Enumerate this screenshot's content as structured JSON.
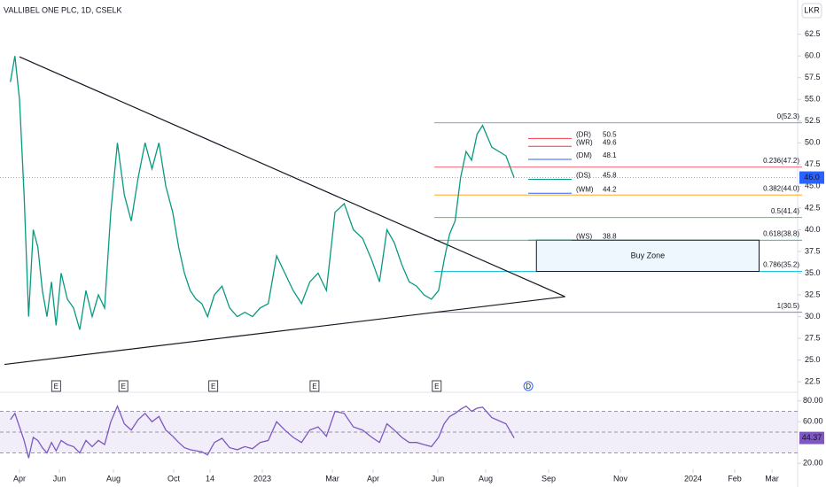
{
  "header": {
    "symbol": "VALLIBEL ONE PLC, 1D, CSELK",
    "currency": "LKR"
  },
  "chart_data": [
    {
      "type": "line",
      "x": [
        "2022-03-18",
        "2022-03-25",
        "2022-04-01",
        "2022-04-08",
        "2022-04-15",
        "2022-04-22",
        "2022-04-29",
        "2022-05-06",
        "2022-05-13",
        "2022-05-20",
        "2022-05-27",
        "2022-06-03",
        "2022-06-10",
        "2022-06-17",
        "2022-06-24",
        "2022-07-01",
        "2022-07-08",
        "2022-07-15",
        "2022-07-22",
        "2022-07-29",
        "2022-08-05",
        "2022-08-12",
        "2022-08-19",
        "2022-08-26",
        "2022-09-02",
        "2022-09-09",
        "2022-09-16",
        "2022-09-23",
        "2022-09-30",
        "2022-10-07",
        "2022-10-14",
        "2022-10-21",
        "2022-10-28",
        "2022-11-04",
        "2022-11-11",
        "2022-11-18",
        "2022-11-25",
        "2022-12-02",
        "2022-12-09",
        "2022-12-16",
        "2022-12-23",
        "2022-12-30",
        "2023-01-06",
        "2023-01-13",
        "2023-01-20",
        "2023-01-27",
        "2023-02-03",
        "2023-02-10",
        "2023-02-17",
        "2023-02-24",
        "2023-03-03",
        "2023-03-10",
        "2023-03-17",
        "2023-03-24",
        "2023-03-31",
        "2023-04-07",
        "2023-04-14",
        "2023-04-21",
        "2023-04-28",
        "2023-05-05",
        "2023-05-12",
        "2023-05-19",
        "2023-05-26",
        "2023-06-02",
        "2023-06-09",
        "2023-06-16",
        "2023-06-23",
        "2023-06-30",
        "2023-07-07",
        "2023-07-14",
        "2023-07-21",
        "2023-07-28",
        "2023-08-04",
        "2023-08-11",
        "2023-08-15"
      ],
      "series": [
        {
          "color": "#089981",
          "values": [
            57,
            60,
            55,
            44,
            30,
            40,
            38,
            33,
            30,
            34,
            29,
            35,
            32,
            31,
            28.5,
            33,
            30,
            32.5,
            31,
            42,
            50,
            44,
            41,
            46,
            50,
            47,
            50,
            45,
            42,
            38,
            35,
            33,
            32,
            31.5,
            30,
            32.5,
            33.5,
            31,
            30,
            30.5,
            30,
            31,
            31.5,
            37,
            35,
            33,
            31.5,
            34,
            35,
            33,
            42,
            43,
            40,
            39,
            36.5,
            34,
            40,
            38.5,
            36,
            34,
            33.5,
            32.5,
            32,
            33,
            36.5,
            39.5,
            41,
            46,
            49,
            48,
            51,
            52,
            49.5,
            48.5,
            46
          ]
        }
      ],
      "ylim": [
        21.6,
        64.4
      ],
      "yticks": [
        {
          "value": 22.5,
          "label": "22.5"
        },
        {
          "value": 25,
          "label": "25.0"
        },
        {
          "value": 27.5,
          "label": "27.5"
        },
        {
          "value": 30,
          "label": "30.0"
        },
        {
          "value": 32.5,
          "label": "32.5"
        },
        {
          "value": 35,
          "label": "35.0"
        },
        {
          "value": 37.5,
          "label": "37.5"
        },
        {
          "value": 40,
          "label": "40.0"
        },
        {
          "value": 42.5,
          "label": "42.5"
        },
        {
          "value": 45,
          "label": "45.0"
        },
        {
          "value": 47.5,
          "label": "47.5"
        },
        {
          "value": 50,
          "label": "50.0"
        },
        {
          "value": 52.5,
          "label": "52.5"
        },
        {
          "value": 55,
          "label": "55.0"
        },
        {
          "value": 57.5,
          "label": "57.5"
        },
        {
          "value": 60,
          "label": "60.0"
        },
        {
          "value": 62.5,
          "label": "62.5"
        }
      ],
      "xticks": [
        {
          "value": "2022-04-01",
          "label": "Apr"
        },
        {
          "value": "2022-06-01",
          "label": "Jun"
        },
        {
          "value": "2022-08-01",
          "label": "Aug"
        },
        {
          "value": "2022-10-01",
          "label": "Oct"
        },
        {
          "value": "2022-11-14",
          "label": "14"
        },
        {
          "value": "2023-01-01",
          "label": "2023"
        },
        {
          "value": "2023-03-01",
          "label": "Mar"
        },
        {
          "value": "2023-04-01",
          "label": "Apr"
        },
        {
          "value": "2023-06-01",
          "label": "Jun"
        },
        {
          "value": "2023-08-01",
          "label": "Aug"
        },
        {
          "value": "2023-09-01",
          "label": "Sep"
        },
        {
          "value": "2023-11-01",
          "label": "Nov"
        },
        {
          "value": "2024-01-01",
          "label": "2024"
        },
        {
          "value": "2024-02-01",
          "label": "Feb"
        },
        {
          "value": "2024-03-01",
          "label": "Mar"
        }
      ],
      "current_price": {
        "value": 46.0,
        "label": "46.0",
        "color": "#2962ff"
      },
      "trendlines": [
        {
          "x": [
            "2022-04-01",
            "2023-09-15"
          ],
          "values": [
            59.9,
            32.3
          ]
        },
        {
          "x": [
            "2022-03-09",
            "2023-09-15"
          ],
          "values": [
            24.5,
            32.3
          ]
        }
      ],
      "fib_levels": [
        {
          "label": "0(52.3)",
          "value": 52.3,
          "color": "#787b86"
        },
        {
          "label": "0.236(47.2)",
          "value": 47.2,
          "color": "#f23645"
        },
        {
          "label": "0.382(44.0)",
          "value": 44.0,
          "color": "#ff9800"
        },
        {
          "label": "0.5(41.4)",
          "value": 41.4,
          "color": "#4caf50"
        },
        {
          "label": "0.618(38.8)",
          "value": 38.8,
          "color": "#089981"
        },
        {
          "label": "0.786(35.2)",
          "value": 35.2,
          "color": "#00bcd4"
        },
        {
          "label": "1(30.5)",
          "value": 30.5,
          "color": "#787b86"
        }
      ],
      "pivots": [
        {
          "name": "(DR)",
          "value": 50.5,
          "color": "#f23645"
        },
        {
          "name": "(WR)",
          "value": 49.6,
          "color": "#f23645"
        },
        {
          "name": "(DM)",
          "value": 48.1,
          "color": "#2962ff"
        },
        {
          "name": "(DS)",
          "value": 45.8,
          "color": "#089981"
        },
        {
          "name": "(WM)",
          "value": 44.2,
          "color": "#2962ff"
        },
        {
          "name": "(WS)",
          "value": 38.8,
          "color": "#089981"
        }
      ],
      "zone": {
        "label": "Buy Zone",
        "x": [
          "2023-08-26",
          "2024-02-20"
        ],
        "values": [
          38.8,
          35.2
        ]
      },
      "events": [
        {
          "label": "E",
          "x": "2022-05-27"
        },
        {
          "label": "E",
          "x": "2022-08-11"
        },
        {
          "label": "E",
          "x": "2022-11-17"
        },
        {
          "label": "E",
          "x": "2023-02-14"
        },
        {
          "label": "E",
          "x": "2023-05-31"
        },
        {
          "label": "D",
          "x": "2023-08-22"
        }
      ]
    },
    {
      "type": "line",
      "x": [
        "2022-03-18",
        "2022-03-25",
        "2022-04-01",
        "2022-04-08",
        "2022-04-15",
        "2022-04-22",
        "2022-04-29",
        "2022-05-06",
        "2022-05-13",
        "2022-05-20",
        "2022-05-27",
        "2022-06-03",
        "2022-06-10",
        "2022-06-17",
        "2022-06-24",
        "2022-07-01",
        "2022-07-08",
        "2022-07-15",
        "2022-07-22",
        "2022-07-29",
        "2022-08-05",
        "2022-08-12",
        "2022-08-19",
        "2022-08-26",
        "2022-09-02",
        "2022-09-09",
        "2022-09-16",
        "2022-09-23",
        "2022-09-30",
        "2022-10-07",
        "2022-10-14",
        "2022-10-21",
        "2022-10-28",
        "2022-11-04",
        "2022-11-11",
        "2022-11-18",
        "2022-11-25",
        "2022-12-02",
        "2022-12-09",
        "2022-12-16",
        "2022-12-23",
        "2022-12-30",
        "2023-01-06",
        "2023-01-13",
        "2023-01-20",
        "2023-01-27",
        "2023-02-03",
        "2023-02-10",
        "2023-02-17",
        "2023-02-24",
        "2023-03-03",
        "2023-03-10",
        "2023-03-17",
        "2023-03-24",
        "2023-03-31",
        "2023-04-07",
        "2023-04-14",
        "2023-04-21",
        "2023-04-28",
        "2023-05-05",
        "2023-05-12",
        "2023-05-19",
        "2023-05-26",
        "2023-06-02",
        "2023-06-09",
        "2023-06-16",
        "2023-06-23",
        "2023-06-30",
        "2023-07-07",
        "2023-07-14",
        "2023-07-21",
        "2023-07-28",
        "2023-08-04",
        "2023-08-11",
        "2023-08-15"
      ],
      "series": [
        {
          "color": "#7e57c2",
          "values": [
            62,
            68,
            55,
            42,
            25,
            45,
            42,
            35,
            30,
            40,
            32,
            42,
            38,
            36,
            30,
            42,
            36,
            42,
            38,
            60,
            75,
            58,
            52,
            62,
            68,
            60,
            65,
            52,
            46,
            40,
            35,
            33,
            32,
            31,
            28,
            40,
            44,
            35,
            33,
            36,
            34,
            40,
            42,
            60,
            52,
            45,
            40,
            52,
            55,
            46,
            70,
            68,
            55,
            52,
            45,
            40,
            58,
            52,
            45,
            40,
            40,
            38,
            36,
            45,
            58,
            65,
            68,
            72,
            75,
            70,
            73,
            74,
            64,
            58,
            44.37
          ]
        }
      ],
      "ylim": [
        14.2,
        87.5
      ],
      "yticks": [
        {
          "value": 20,
          "label": "20.00"
        },
        {
          "value": 60,
          "label": "60.00"
        },
        {
          "value": 80,
          "label": "80.00"
        }
      ],
      "levels": [
        70,
        50,
        30
      ],
      "current_value": {
        "value": 44.37,
        "label": "44.37",
        "color": "#7e57c2"
      }
    }
  ]
}
